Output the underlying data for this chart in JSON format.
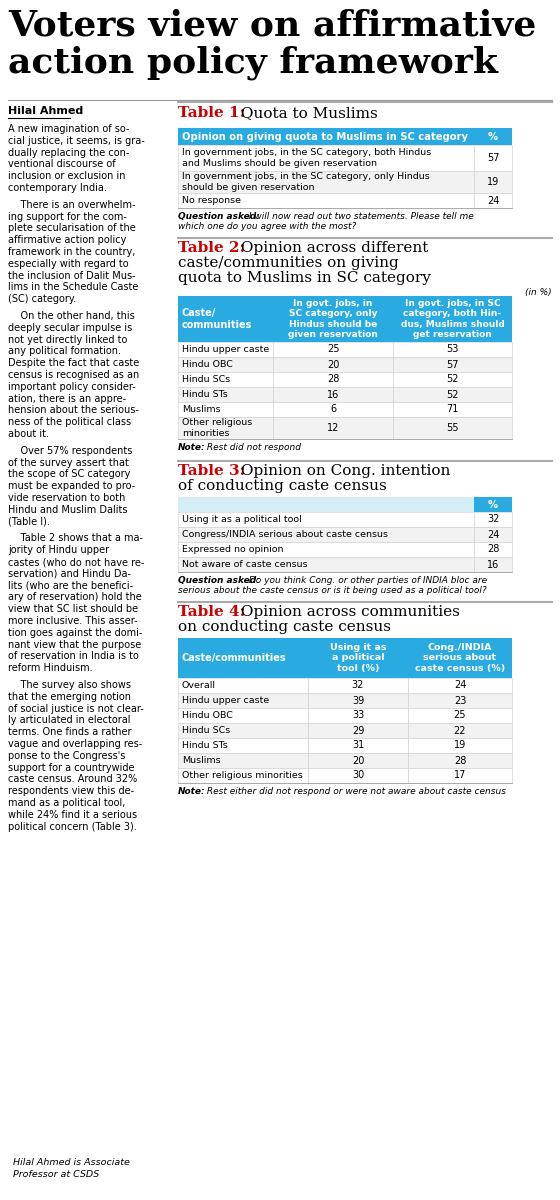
{
  "title_line1": "Voters view on affirmative",
  "title_line2": "action policy framework",
  "author": "Hilal Ahmed",
  "author_note_line1": "Hilal Ahmed is Associate",
  "author_note_line2": "Professor at CSDS",
  "body_paragraphs": [
    "A new imagination of so-\ncial justice, it seems, is gra-\ndually replacing the con-\nventional discourse of\ninclusion or exclusion in\ncontemporary India.",
    "    There is an overwhelm-\ning support for the com-\nplete secularisation of the\naffirmative action policy\nframework in the country,\nespecially with regard to\nthe inclusion of Dalit Mus-\nlims in the Schedule Caste\n(SC) category.",
    "    On the other hand, this\ndeeply secular impulse is\nnot yet directly linked to\nany political formation.\nDespite the fact that caste\ncensus is recognised as an\nimportant policy consider-\nation, there is an appre-\nhension about the serious-\nness of the political class\nabout it.",
    "    Over 57% respondents\nof the survey assert that\nthe scope of SC category\nmust be expanded to pro-\nvide reservation to both\nHindu and Muslim Dalits\n(Table I).",
    "    Table 2 shows that a ma-\njority of Hindu upper\ncastes (who do not have re-\nservation) and Hindu Da-\nlits (who are the benefici-\nary of reservation) hold the\nview that SC list should be\nmore inclusive. This asser-\ntion goes against the domi-\nnant view that the purpose\nof reservation in India is to\nreform Hinduism.",
    "    The survey also shows\nthat the emerging notion\nof social justice is not clear-\nly articulated in electoral\nterms. One finds a rather\nvague and overlapping res-\nponse to the Congress's\nsupport for a countrywide\ncaste census. Around 32%\nrespondents view this de-\nmand as a political tool,\nwhile 24% find it a serious\npolitical concern (Table 3)."
  ],
  "table1_title_bold": "Table 1:",
  "table1_title_rest": " Quota to Muslims",
  "table1_header_col1": "Opinion on giving quota to Muslims in SC category",
  "table1_header_col2": "%",
  "table1_rows": [
    [
      "In government jobs, in the SC category, both Hindus\nand Muslims should be given reservation",
      "57"
    ],
    [
      "In government jobs, in the SC category, only Hindus\nshould be given reservation",
      "19"
    ],
    [
      "No response",
      "24"
    ]
  ],
  "table1_question": "Question asked: I will now read out two statements. Please tell me\nwhich one do you agree with the most?",
  "table2_title_bold": "Table 2:",
  "table2_title_rest_l1": " Opinion across different",
  "table2_title_rest_l2": "caste/communities on giving",
  "table2_title_rest_l3": "quota to Muslims in SC category",
  "table2_in_pct": "(in %)",
  "table2_h1": "Caste/\ncommunities",
  "table2_h2": "In govt. jobs, in\nSC category, only\nHindus should be\ngiven reservation",
  "table2_h3": "In govt. jobs, in SC\ncategory, both Hin-\ndus, Muslims should\nget reservation",
  "table2_rows": [
    [
      "Hindu upper caste",
      "25",
      "53"
    ],
    [
      "Hindu OBC",
      "20",
      "57"
    ],
    [
      "Hindu SCs",
      "28",
      "52"
    ],
    [
      "Hindu STs",
      "16",
      "52"
    ],
    [
      "Muslims",
      "6",
      "71"
    ],
    [
      "Other religious\nminorities",
      "12",
      "55"
    ]
  ],
  "table2_note": "Note: Rest did not respond",
  "table3_title_bold": "Table 3:",
  "table3_title_rest_l1": " Opinion on Cong. intention",
  "table3_title_rest_l2": "of conducting caste census",
  "table3_header_col2": "%",
  "table3_rows": [
    [
      "Using it as a political tool",
      "32"
    ],
    [
      "Congress/INDIA serious about caste census",
      "24"
    ],
    [
      "Expressed no opinion",
      "28"
    ],
    [
      "Not aware of caste census",
      "16"
    ]
  ],
  "table3_question": "Question asked: Do you think Cong. or other parties of INDIA bloc are\nserious about the caste census or is it being used as a political tool?",
  "table4_title_bold": "Table 4:",
  "table4_title_rest_l1": " Opinion across communities",
  "table4_title_rest_l2": "on conducting caste census",
  "table4_h1": "Caste/communities",
  "table4_h2": "Using it as\na political\ntool (%)",
  "table4_h3": "Cong./INDIA\nserious about\ncaste census (%)",
  "table4_rows": [
    [
      "Overall",
      "32",
      "24"
    ],
    [
      "Hindu upper caste",
      "39",
      "23"
    ],
    [
      "Hindu OBC",
      "33",
      "25"
    ],
    [
      "Hindu SCs",
      "29",
      "22"
    ],
    [
      "Hindu STs",
      "31",
      "19"
    ],
    [
      "Muslims",
      "20",
      "28"
    ],
    [
      "Other religious minorities",
      "30",
      "17"
    ]
  ],
  "table4_note": "Note: Rest either did not respond or were not aware about caste census",
  "header_color": "#29ABE2",
  "title_table_color": "#CC0000",
  "bg_color": "#FFFFFF",
  "separator_color": "#999999"
}
